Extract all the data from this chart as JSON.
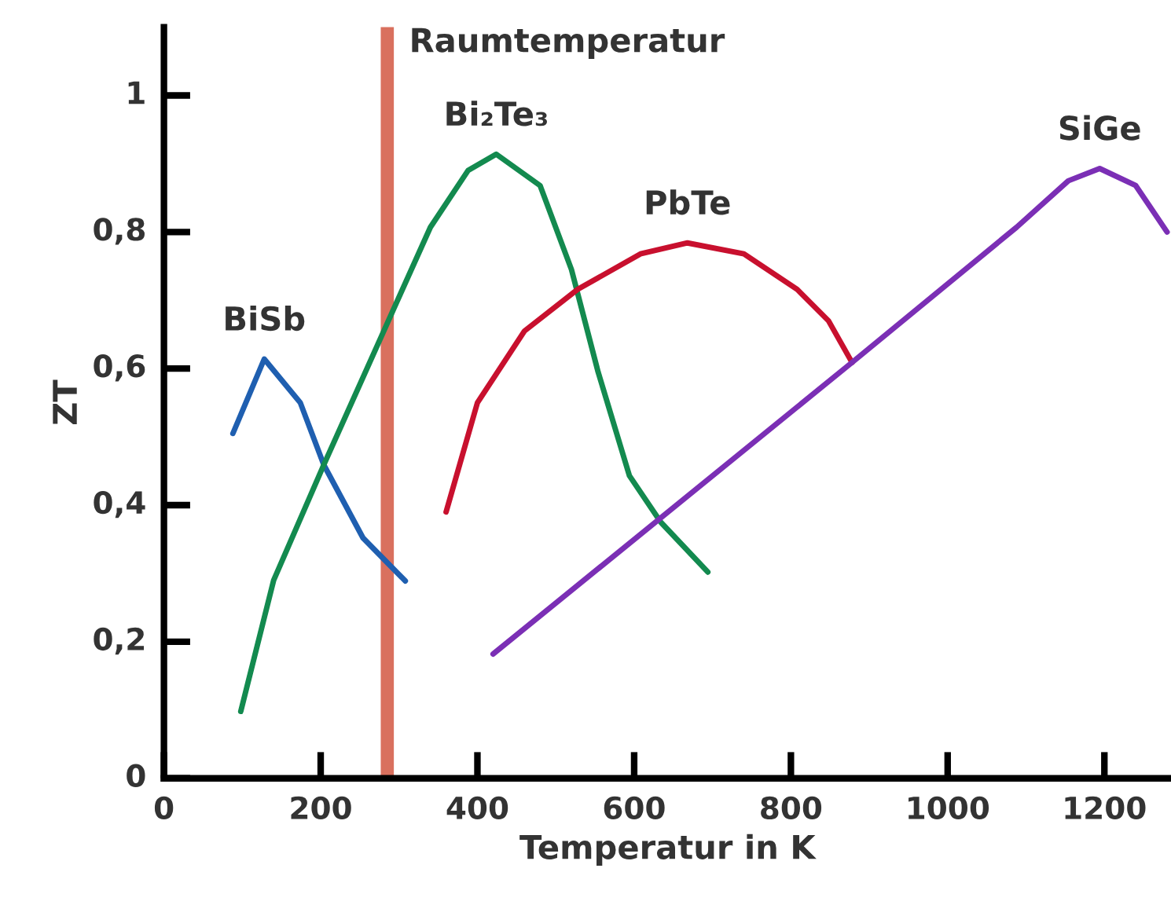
{
  "chart_data": {
    "type": "line",
    "xlabel": "Temperatur in K",
    "ylabel": "ZT",
    "xlim": [
      0,
      1285
    ],
    "ylim": [
      0,
      1.1
    ],
    "xticks": [
      0,
      200,
      400,
      600,
      800,
      1000,
      1200
    ],
    "yticks": [
      0,
      {
        "value": 0.2,
        "label": "0,2"
      },
      {
        "value": 0.4,
        "label": "0,4"
      },
      {
        "value": 0.6,
        "label": "0,6"
      },
      {
        "value": 0.8,
        "label": "0,8"
      },
      1
    ],
    "grid": false,
    "legend": false,
    "marker": "none",
    "line_style": "solid",
    "ref_lines": [
      {
        "axis": "x",
        "value": 285,
        "label": "Raumtemperatur",
        "color": "#d9705e"
      }
    ],
    "series": [
      {
        "name": "BiSb",
        "color": "#1f5fb0",
        "x": [
          88,
          128,
          174,
          204,
          254,
          308
        ],
        "values": [
          0.505,
          0.614,
          0.55,
          0.459,
          0.352,
          0.289
        ]
      },
      {
        "name": "Bi₂Te₃",
        "color": "#138a4f",
        "x": [
          98,
          140,
          204,
          284,
          340,
          388,
          424,
          480,
          520,
          554,
          594,
          634,
          694
        ],
        "values": [
          0.098,
          0.29,
          0.459,
          0.664,
          0.807,
          0.89,
          0.914,
          0.868,
          0.745,
          0.595,
          0.443,
          0.375,
          0.302
        ]
      },
      {
        "name": "PbTe",
        "color": "#c8102e",
        "x": [
          360,
          400,
          460,
          528,
          608,
          668,
          740,
          808,
          848,
          878
        ],
        "values": [
          0.39,
          0.55,
          0.655,
          0.716,
          0.768,
          0.784,
          0.768,
          0.716,
          0.67,
          0.609
        ]
      },
      {
        "name": "SiGe",
        "color": "#7b2fb5",
        "x": [
          420,
          878,
          1088,
          1154,
          1194,
          1240,
          1280
        ],
        "values": [
          0.182,
          0.609,
          0.807,
          0.875,
          0.893,
          0.868,
          0.8
        ]
      }
    ]
  }
}
